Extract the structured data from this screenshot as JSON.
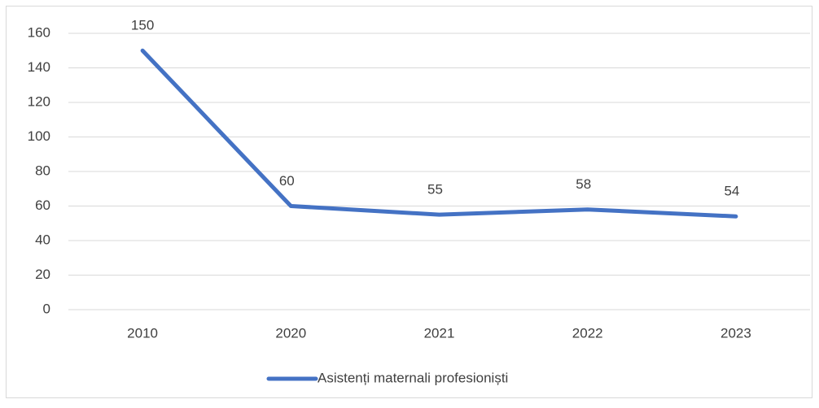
{
  "chart_data": {
    "type": "line",
    "categories": [
      "2010",
      "2020",
      "2021",
      "2022",
      "2023"
    ],
    "series": [
      {
        "name": "Asistenți maternali profesioniști",
        "color": "#4472c4",
        "values": [
          150,
          60,
          55,
          58,
          54
        ]
      }
    ],
    "ylim": [
      0,
      160
    ],
    "yticks": [
      0,
      20,
      40,
      60,
      80,
      100,
      120,
      140,
      160
    ],
    "grid": true,
    "legend": "bottom",
    "data_labels": true
  }
}
